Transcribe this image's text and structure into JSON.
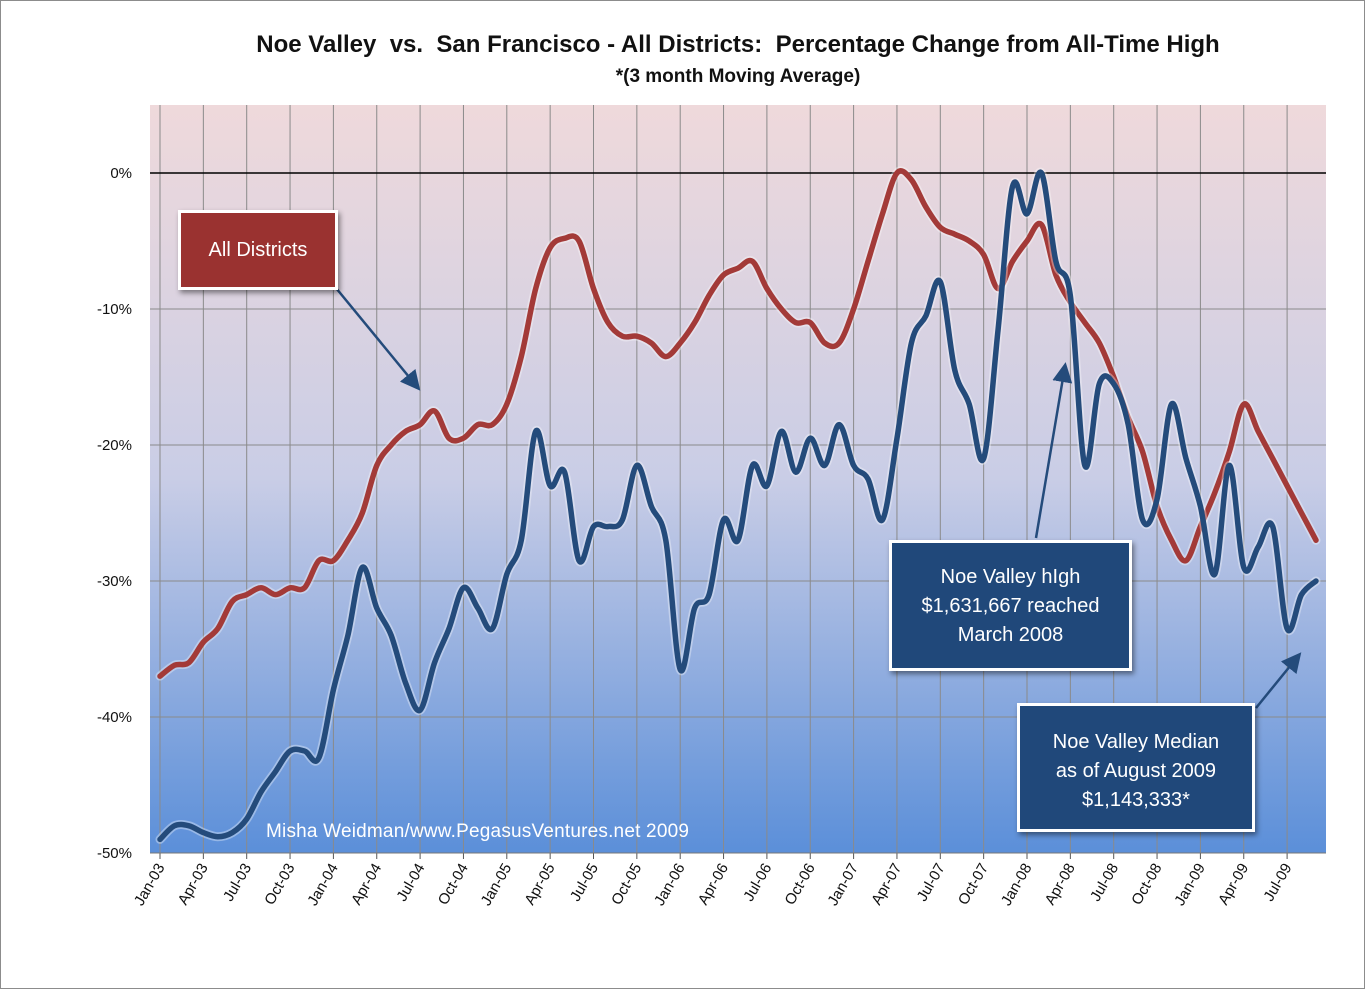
{
  "chart_data": {
    "type": "line",
    "title": "Noe Valley  vs.  San Francisco - All Districts:  Percentage Change from All-Time High",
    "subtitle": "*(3 month Moving Average)",
    "xlabel": "",
    "ylabel": "",
    "ylim": [
      -50,
      5
    ],
    "yticks": [
      0,
      -10,
      -20,
      -30,
      -40,
      -50
    ],
    "ytick_labels": [
      "0%",
      "-10%",
      "-20%",
      "-30%",
      "-40%",
      "-50%"
    ],
    "x_tick_labels": [
      "Jan-03",
      "Apr-03",
      "Jul-03",
      "Oct-03",
      "Jan-04",
      "Apr-04",
      "Jul-04",
      "Oct-04",
      "Jan-05",
      "Apr-05",
      "Jul-05",
      "Oct-05",
      "Jan-06",
      "Apr-06",
      "Jul-06",
      "Oct-06",
      "Jan-07",
      "Apr-07",
      "Jul-07",
      "Oct-07",
      "Jan-08",
      "Apr-08",
      "Jul-08",
      "Oct-08",
      "Jan-09",
      "Apr-09",
      "Jul-09"
    ],
    "months_start": "Jan-03",
    "months_count": 81,
    "grid": true,
    "reference_line": 0,
    "series": [
      {
        "name": "All Districts",
        "color": "#a33a38",
        "values": [
          -37,
          -36.2,
          -36,
          -34.5,
          -33.5,
          -31.5,
          -31,
          -30.5,
          -31,
          -30.5,
          -30.5,
          -28.5,
          -28.5,
          -27,
          -25,
          -21.5,
          -20,
          -19,
          -18.5,
          -17.5,
          -19.5,
          -19.5,
          -18.5,
          -18.5,
          -17,
          -13.5,
          -8.5,
          -5.5,
          -4.8,
          -5,
          -8.5,
          -11,
          -12,
          -12,
          -12.5,
          -13.5,
          -12.5,
          -11,
          -9,
          -7.5,
          -7,
          -6.5,
          -8.5,
          -10,
          -11,
          -11,
          -12.5,
          -12.5,
          -10,
          -6.5,
          -3,
          0,
          -0.5,
          -2.5,
          -4,
          -4.5,
          -5,
          -6,
          -8.5,
          -6.5,
          -5,
          -3.8,
          -7.5,
          -9.5,
          -11,
          -12.5,
          -15,
          -18,
          -20.5,
          -24.5,
          -27,
          -28.5,
          -26,
          -23.5,
          -20.5,
          -17,
          -19,
          -21,
          -23,
          -25,
          -27
        ]
      },
      {
        "name": "Noe Valley",
        "color": "#244b7b",
        "values": [
          -49,
          -48,
          -48,
          -48.5,
          -48.8,
          -48.5,
          -47.5,
          -45.5,
          -44,
          -42.5,
          -42.5,
          -43,
          -38,
          -34,
          -29,
          -32,
          -34,
          -37.5,
          -39.5,
          -36,
          -33.5,
          -30.5,
          -32,
          -33.5,
          -29.5,
          -27,
          -19,
          -23,
          -22,
          -28.5,
          -26,
          -26,
          -25.5,
          -21.5,
          -24.5,
          -27,
          -36.5,
          -32,
          -31,
          -25.5,
          -27,
          -21.5,
          -23,
          -19,
          -22,
          -19.5,
          -21.5,
          -18.5,
          -21.5,
          -22.5,
          -25.5,
          -19.5,
          -12.5,
          -10.5,
          -8,
          -14.5,
          -17,
          -21,
          -11.5,
          -1,
          -3,
          0,
          -6.5,
          -9,
          -21.5,
          -15.5,
          -15.5,
          -18.5,
          -25.5,
          -24,
          -17,
          -21,
          -24.5,
          -29.5,
          -21.5,
          -29,
          -27.5,
          -26,
          -33.5,
          -31,
          -30
        ]
      }
    ]
  },
  "annotations": {
    "all_districts_label": "All Districts",
    "noe_high_line1": "Noe Valley hIgh",
    "noe_high_line2": "$1,631,667 reached",
    "noe_high_line3": "March 2008",
    "noe_median_line1": "Noe Valley  Median",
    "noe_median_line2": "as of  August 2009",
    "noe_median_line3": "$1,143,333*",
    "credit": "Misha Weidman/www.PegasusVentures.net 2009"
  },
  "colors": {
    "plot_top": "#efd9db",
    "plot_bottom": "#5b8fd9",
    "box_red": "#9a3230",
    "box_blue": "#20487a",
    "arrow": "#244b7b"
  }
}
